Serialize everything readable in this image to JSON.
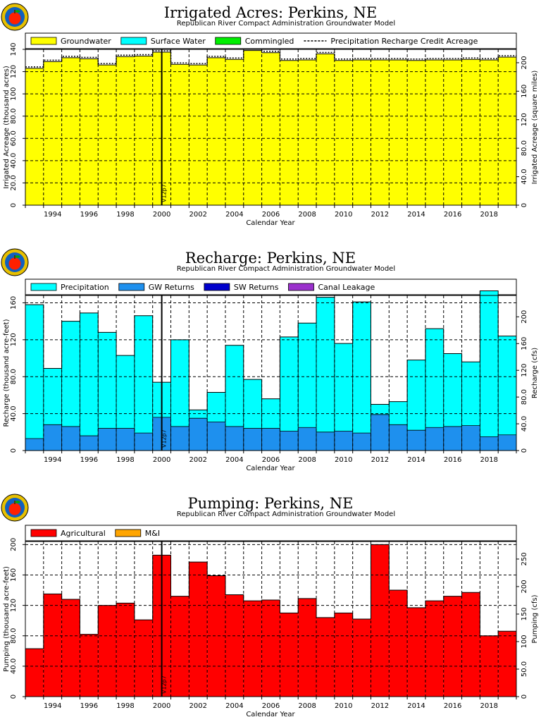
{
  "colors": {
    "groundwater": "#ffff00",
    "surface_water": "#00ffff",
    "commingled": "#00ee00",
    "precipitation": "#00ffff",
    "gw_returns": "#1e90ee",
    "sw_returns": "#0000cc",
    "canal_leakage": "#9a30cc",
    "agricultural": "#ff0000",
    "mi": "#ffa500",
    "logo_outer": "#e8c000",
    "logo_inner": "#1060c0",
    "logo_apple": "#ff2000"
  },
  "chart_data": [
    {
      "type": "area",
      "title": "Irrigated Acres: Perkins, NE",
      "subtitle": "Republican River Compact Administration Groundwater Model",
      "xlabel": "Calendar Year",
      "ylabel": "Irrigated Acreage (thousand acres)",
      "ylabel_right": "Irrigated Acreage (square miles)",
      "x_start": 1993,
      "x_end": 2020,
      "ylim": [
        0,
        140
      ],
      "ylim_right": [
        0,
        218.75
      ],
      "yticks": [
        "0",
        "20.0",
        "40.0",
        "60.0",
        "80.0",
        "100",
        "120",
        "140"
      ],
      "yticks_right": [
        "0",
        "40.0",
        "80.0",
        "120",
        "160",
        "200"
      ],
      "xticks": [
        "1994",
        "1996",
        "1998",
        "2000",
        "2002",
        "2004",
        "2006",
        "2008",
        "2010",
        "2012",
        "2014",
        "2016",
        "2018"
      ],
      "legend": [
        "Groundwater",
        "Surface Water",
        "Commingled",
        "Precipitation Recharge Credit Acreage"
      ],
      "legend_placement": "top",
      "grid": true,
      "marker": {
        "x": 2000.5,
        "label": "V12p7"
      },
      "years": [
        1993,
        1994,
        1995,
        1996,
        1997,
        1998,
        1999,
        2000,
        2001,
        2002,
        2003,
        2004,
        2005,
        2006,
        2007,
        2008,
        2009,
        2010,
        2011,
        2012,
        2013,
        2014,
        2015,
        2016,
        2017,
        2018,
        2019
      ],
      "series": [
        {
          "name": "Groundwater",
          "values": [
            123,
            129,
            132.5,
            131.5,
            126,
            133.5,
            134,
            137.5,
            126.5,
            126,
            132.5,
            131,
            139,
            137,
            130,
            130.5,
            136,
            130,
            130.5,
            130.5,
            130.5,
            130,
            130.5,
            130.5,
            131,
            130.5,
            133
          ]
        },
        {
          "name": "Precipitation Recharge Credit Acreage",
          "values": [
            123,
            129,
            132.5,
            131.5,
            126,
            133.5,
            134,
            137.5,
            126.5,
            126,
            132.5,
            131,
            139,
            137,
            130,
            130.5,
            136,
            130,
            130.5,
            130.5,
            130.5,
            130,
            130.5,
            130.5,
            131,
            130.5,
            133
          ]
        }
      ]
    },
    {
      "type": "area",
      "title": "Recharge: Perkins, NE",
      "subtitle": "Republican River Compact Administration Groundwater Model",
      "xlabel": "Calendar Year",
      "ylabel": "Recharge (thousand acre-feet)",
      "ylabel_right": "Recharge (cfs)",
      "x_start": 1993,
      "x_end": 2020,
      "ylim": [
        0,
        168
      ],
      "ylim_right": [
        0,
        232
      ],
      "yticks": [
        "0",
        "40.0",
        "80.0",
        "120",
        "160"
      ],
      "yticks_right": [
        "0",
        "40.0",
        "80.0",
        "120",
        "160",
        "200"
      ],
      "xticks": [
        "1994",
        "1996",
        "1998",
        "2000",
        "2002",
        "2004",
        "2006",
        "2008",
        "2010",
        "2012",
        "2014",
        "2016",
        "2018"
      ],
      "legend": [
        "Precipitation",
        "GW Returns",
        "SW Returns",
        "Canal Leakage"
      ],
      "legend_placement": "top",
      "grid": true,
      "marker": {
        "x": 2000.5,
        "label": "V12p7"
      },
      "years": [
        1993,
        1994,
        1995,
        1996,
        1997,
        1998,
        1999,
        2000,
        2001,
        2002,
        2003,
        2004,
        2005,
        2006,
        2007,
        2008,
        2009,
        2010,
        2011,
        2012,
        2013,
        2014,
        2015,
        2016,
        2017,
        2018,
        2019
      ],
      "series": [
        {
          "name": "GW Returns",
          "values": [
            13,
            28,
            26,
            16,
            24,
            24,
            19,
            36,
            26,
            35,
            31,
            26,
            24,
            24,
            21,
            25,
            20,
            21,
            19,
            39,
            28,
            22,
            25,
            26,
            27,
            15,
            17
          ]
        },
        {
          "name": "Precipitation",
          "values": [
            145,
            61,
            114,
            133,
            104,
            79,
            127,
            38,
            94,
            9,
            32,
            88,
            53,
            32,
            102,
            113,
            146,
            95,
            142,
            11,
            25,
            76,
            107,
            79,
            69,
            158,
            107
          ]
        }
      ]
    },
    {
      "type": "area",
      "title": "Pumping: Perkins, NE",
      "subtitle": "Republican River Compact Administration Groundwater Model",
      "xlabel": "Calendar Year",
      "ylabel": "Pumping (thousand acre-feet)",
      "ylabel_right": "Pumping (cfs)",
      "x_start": 1993,
      "x_end": 2020,
      "ylim": [
        0,
        204
      ],
      "ylim_right": [
        0,
        281.9
      ],
      "yticks": [
        "0",
        "40.0",
        "80.0",
        "120",
        "160",
        "200"
      ],
      "yticks_right": [
        "0",
        "50.0",
        "100",
        "150",
        "200",
        "250"
      ],
      "xticks": [
        "1994",
        "1996",
        "1998",
        "2000",
        "2002",
        "2004",
        "2006",
        "2008",
        "2010",
        "2012",
        "2014",
        "2016",
        "2018"
      ],
      "legend": [
        "Agricultural",
        "M&I"
      ],
      "legend_placement": "top-left",
      "grid": true,
      "marker": {
        "x": 2000.5,
        "label": "V12p7"
      },
      "years": [
        1993,
        1994,
        1995,
        1996,
        1997,
        1998,
        1999,
        2000,
        2001,
        2002,
        2003,
        2004,
        2005,
        2006,
        2007,
        2008,
        2009,
        2010,
        2011,
        2012,
        2013,
        2014,
        2015,
        2016,
        2017,
        2018,
        2019
      ],
      "series": [
        {
          "name": "Agricultural",
          "values": [
            63,
            135,
            128,
            82,
            120,
            123,
            101,
            186,
            132,
            177,
            159,
            134,
            126,
            127,
            110,
            129,
            104,
            110,
            102,
            200,
            140,
            117,
            126,
            132,
            137,
            80,
            86
          ]
        }
      ]
    }
  ]
}
